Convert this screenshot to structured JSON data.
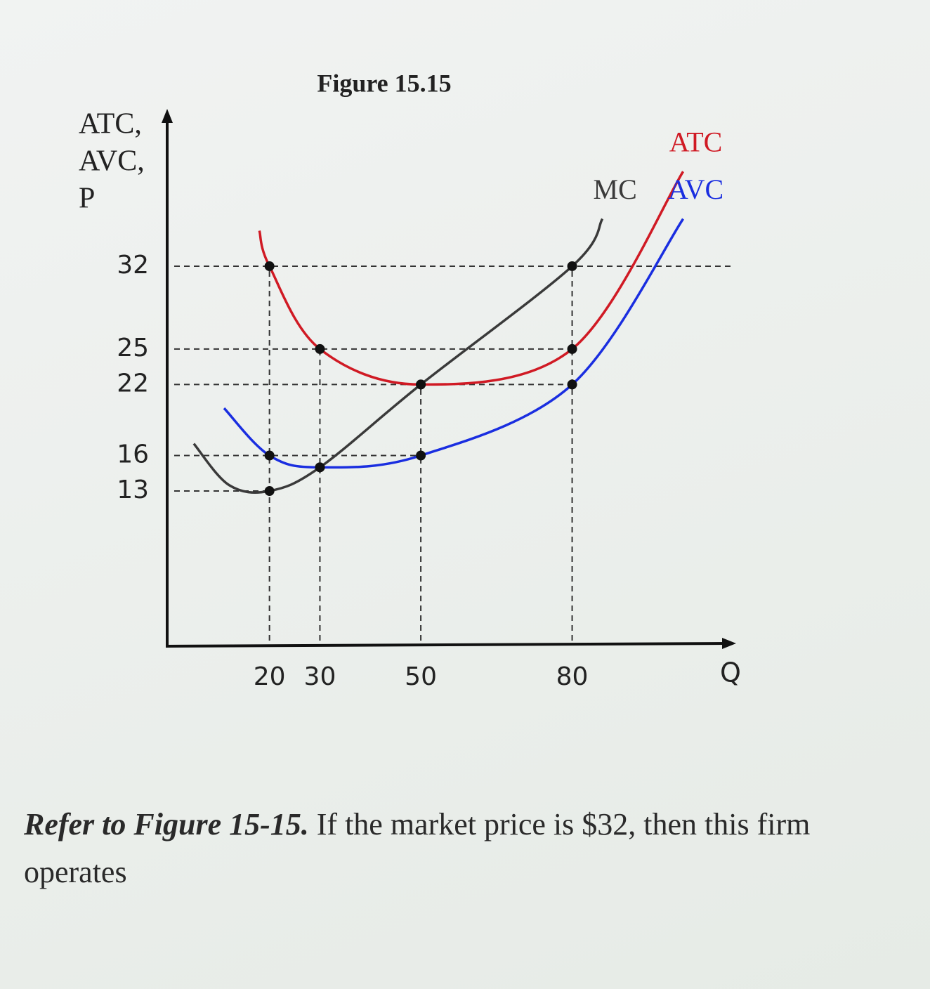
{
  "chart_data": {
    "type": "line",
    "title": "Figure 15.15",
    "y_label": [
      "ATC,",
      "AVC,",
      "P"
    ],
    "x_label": "Q",
    "xlim": [
      0,
      110
    ],
    "xticks": [
      20,
      30,
      50,
      80
    ],
    "ylim": [
      0,
      45
    ],
    "yticks": [
      13,
      16,
      22,
      25,
      32
    ],
    "series": [
      {
        "name": "MC",
        "color": "#3a3a3a",
        "x": [
          5,
          12,
          20,
          30,
          50,
          80,
          86
        ],
        "values": [
          17,
          13.5,
          13,
          15,
          22,
          32,
          36
        ]
      },
      {
        "name": "ATC",
        "color": "#d01a24",
        "x": [
          18,
          20,
          30,
          50,
          80,
          102
        ],
        "values": [
          35,
          32,
          25,
          22,
          25,
          40
        ]
      },
      {
        "name": "AVC",
        "color": "#1a2ee0",
        "x": [
          11,
          20,
          30,
          50,
          80,
          102
        ],
        "values": [
          20,
          16,
          15,
          16,
          22,
          36
        ]
      }
    ]
  },
  "question": {
    "reference": "Refer to Figure 15-15.",
    "text": "If the market price is $32, then this firm operates"
  }
}
